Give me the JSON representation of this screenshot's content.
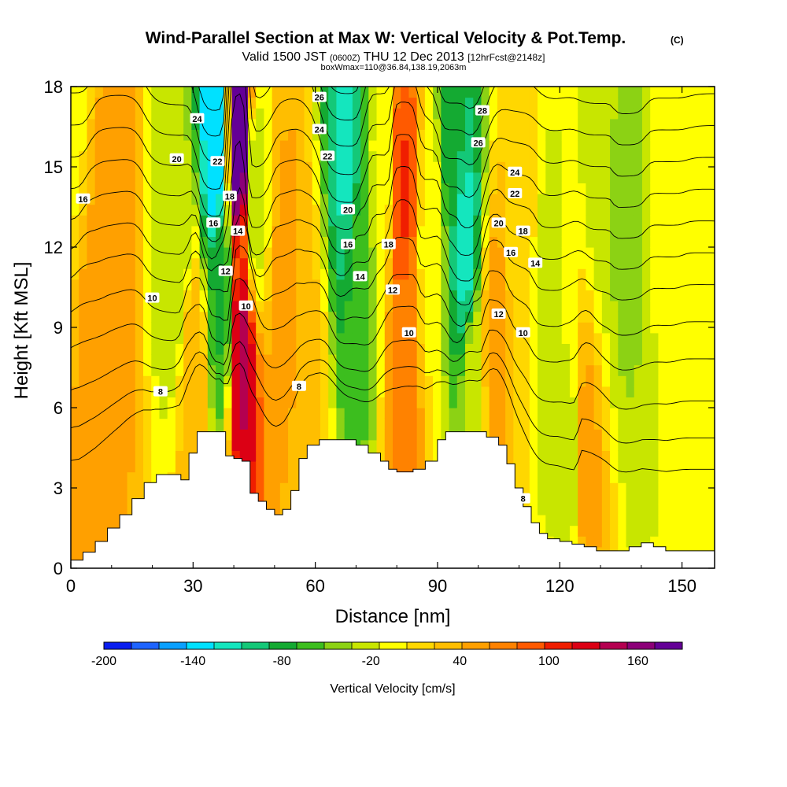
{
  "header": {
    "title": "Wind-Parallel Section at Max W: Vertical Velocity & Pot.Temp.",
    "copyright": "(C)",
    "valid_prefix": "Valid 1500 JST",
    "valid_utc": "(0600Z)",
    "valid_date": "THU 12 Dec 2013",
    "forecast": "[12hrFcst@2148z]",
    "box": "boxWmax=110@36.84,138.19,2063m"
  },
  "chart_data": {
    "type": "heatmap",
    "xlabel": "Distance [nm]",
    "ylabel": "Height [Kft MSL]",
    "xlim": [
      0,
      158
    ],
    "ylim": [
      0,
      18
    ],
    "xticks": [
      0,
      30,
      60,
      90,
      120,
      150
    ],
    "yticks": [
      0,
      3,
      6,
      9,
      12,
      15,
      18
    ],
    "colorbar": {
      "label": "Vertical Velocity [cm/s]",
      "tick_labels": [
        "-200",
        "-140",
        "-80",
        "-20",
        "40",
        "100",
        "160"
      ],
      "tick_values": [
        -200,
        -140,
        -80,
        -20,
        40,
        100,
        160
      ],
      "range": [
        -200,
        190
      ],
      "colors": [
        "#0a1ef0",
        "#1e64ff",
        "#0aa0ff",
        "#00e1ff",
        "#14e6be",
        "#14c878",
        "#14aa32",
        "#3cbe1e",
        "#8cd214",
        "#c8e600",
        "#ffff00",
        "#ffd700",
        "#ffbe00",
        "#ffa000",
        "#ff8200",
        "#ff5a00",
        "#f01e00",
        "#dc0014",
        "#b40050",
        "#8c0078",
        "#640096"
      ]
    },
    "terrain_kft": [
      [
        0,
        0.3
      ],
      [
        3,
        0.6
      ],
      [
        6,
        1
      ],
      [
        9,
        1.5
      ],
      [
        12,
        2
      ],
      [
        15,
        2.6
      ],
      [
        18,
        3.2
      ],
      [
        21,
        3.5
      ],
      [
        24,
        3.5
      ],
      [
        27,
        3.3
      ],
      [
        29,
        4.3
      ],
      [
        31,
        5.1
      ],
      [
        37,
        5.1
      ],
      [
        38,
        4.2
      ],
      [
        40,
        4.1
      ],
      [
        42,
        4
      ],
      [
        44,
        2.8
      ],
      [
        46,
        2.5
      ],
      [
        48,
        2.2
      ],
      [
        50,
        2
      ],
      [
        52,
        2.2
      ],
      [
        54,
        2.9
      ],
      [
        56,
        4.1
      ],
      [
        58,
        4.6
      ],
      [
        61,
        4.8
      ],
      [
        66,
        4.8
      ],
      [
        70,
        4.6
      ],
      [
        73,
        4.3
      ],
      [
        76,
        4
      ],
      [
        78,
        3.7
      ],
      [
        80,
        3.6
      ],
      [
        84,
        3.7
      ],
      [
        87,
        4
      ],
      [
        90,
        4.8
      ],
      [
        92,
        5.1
      ],
      [
        98,
        5.1
      ],
      [
        102,
        4.9
      ],
      [
        105,
        4.6
      ],
      [
        107,
        3.9
      ],
      [
        109,
        3
      ],
      [
        111,
        2.3
      ],
      [
        113,
        1.7
      ],
      [
        115,
        1.3
      ],
      [
        117,
        1.1
      ],
      [
        120,
        1
      ],
      [
        123,
        0.9
      ],
      [
        126,
        0.8
      ],
      [
        129,
        0.65
      ],
      [
        134,
        0.65
      ],
      [
        137,
        0.8
      ],
      [
        140,
        0.95
      ],
      [
        143,
        0.8
      ],
      [
        146,
        0.65
      ],
      [
        158,
        0.65
      ]
    ],
    "theta_contours": {
      "units": "C",
      "levels": [
        8,
        10,
        12,
        14,
        16,
        18,
        20,
        22,
        24,
        26,
        28
      ],
      "labels": [
        {
          "text": "24",
          "x": 31,
          "y": 16.8
        },
        {
          "text": "22",
          "x": 36,
          "y": 15.2
        },
        {
          "text": "20",
          "x": 26,
          "y": 15.3
        },
        {
          "text": "16",
          "x": 3,
          "y": 13.8
        },
        {
          "text": "18",
          "x": 39,
          "y": 13.9
        },
        {
          "text": "16",
          "x": 35,
          "y": 12.9
        },
        {
          "text": "14",
          "x": 41,
          "y": 12.6
        },
        {
          "text": "12",
          "x": 38,
          "y": 11.1
        },
        {
          "text": "10",
          "x": 20,
          "y": 10.1
        },
        {
          "text": "10",
          "x": 43,
          "y": 9.8
        },
        {
          "text": "8",
          "x": 22,
          "y": 6.6
        },
        {
          "text": "8",
          "x": 56,
          "y": 6.8
        },
        {
          "text": "26",
          "x": 61,
          "y": 17.6
        },
        {
          "text": "24",
          "x": 61,
          "y": 16.4
        },
        {
          "text": "22",
          "x": 63,
          "y": 15.4
        },
        {
          "text": "20",
          "x": 68,
          "y": 13.4
        },
        {
          "text": "16",
          "x": 68,
          "y": 12.1
        },
        {
          "text": "14",
          "x": 71,
          "y": 10.9
        },
        {
          "text": "18",
          "x": 78,
          "y": 12.1
        },
        {
          "text": "12",
          "x": 79,
          "y": 10.4
        },
        {
          "text": "10",
          "x": 83,
          "y": 8.8
        },
        {
          "text": "28",
          "x": 101,
          "y": 17.1
        },
        {
          "text": "26",
          "x": 100,
          "y": 15.9
        },
        {
          "text": "24",
          "x": 109,
          "y": 14.8
        },
        {
          "text": "22",
          "x": 109,
          "y": 14.0
        },
        {
          "text": "20",
          "x": 105,
          "y": 12.9
        },
        {
          "text": "18",
          "x": 111,
          "y": 12.6
        },
        {
          "text": "16",
          "x": 108,
          "y": 11.8
        },
        {
          "text": "14",
          "x": 114,
          "y": 11.4
        },
        {
          "text": "12",
          "x": 105,
          "y": 9.5
        },
        {
          "text": "10",
          "x": 111,
          "y": 8.8
        },
        {
          "text": "8",
          "x": 111,
          "y": 2.6
        }
      ]
    },
    "w_features_cm_s": [
      {
        "x": 0,
        "z": 18,
        "w": -10
      },
      {
        "x": 10,
        "z": 12,
        "w": 45
      },
      {
        "x": 6,
        "z": 8,
        "w": 40
      },
      {
        "x": 30,
        "z": 7,
        "w": 30
      },
      {
        "x": 26,
        "z": 12,
        "w": -40
      },
      {
        "x": 35.5,
        "z": 16,
        "w": -150
      },
      {
        "x": 37,
        "z": 10,
        "w": -80
      },
      {
        "x": 41.5,
        "z": 16,
        "w": 180
      },
      {
        "x": 42,
        "z": 8,
        "w": 130
      },
      {
        "x": 45,
        "z": 14,
        "w": -40
      },
      {
        "x": 53,
        "z": 10,
        "w": 40
      },
      {
        "x": 58,
        "z": 6,
        "w": 20
      },
      {
        "x": 68,
        "z": 16,
        "w": -120
      },
      {
        "x": 71,
        "z": 11,
        "w": -70
      },
      {
        "x": 76,
        "z": 15,
        "w": -20
      },
      {
        "x": 81.5,
        "z": 14,
        "w": 90
      },
      {
        "x": 82,
        "z": 8,
        "w": 60
      },
      {
        "x": 88,
        "z": 12,
        "w": -10
      },
      {
        "x": 94,
        "z": 17,
        "w": -90
      },
      {
        "x": 97,
        "z": 12,
        "w": -120
      },
      {
        "x": 99,
        "z": 7,
        "w": -30
      },
      {
        "x": 104,
        "z": 8,
        "w": 50
      },
      {
        "x": 110,
        "z": 12,
        "w": 10
      },
      {
        "x": 117,
        "z": 9,
        "w": -30
      },
      {
        "x": 123,
        "z": 4,
        "w": -30
      },
      {
        "x": 130,
        "z": 15,
        "w": -30
      },
      {
        "x": 136,
        "z": 14,
        "w": -50
      },
      {
        "x": 126,
        "z": 4,
        "w": 45
      },
      {
        "x": 146,
        "z": 14,
        "w": -20
      },
      {
        "x": 154,
        "z": 8,
        "w": -10
      }
    ]
  }
}
